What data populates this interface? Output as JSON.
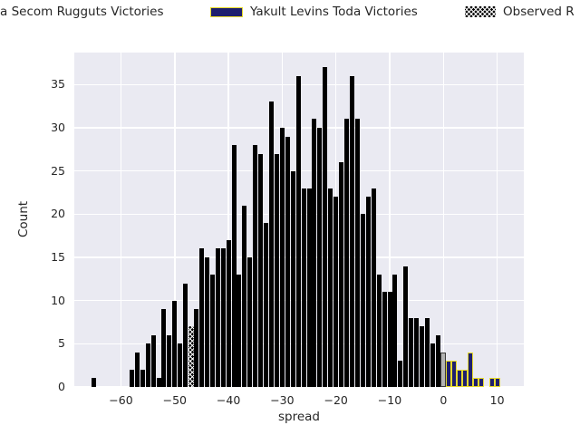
{
  "legend": {
    "items": [
      {
        "label": "a Secom Rugguts Victories",
        "swatch": "clipped-offscreen"
      },
      {
        "label": "Yakult Levins Toda Victories",
        "swatch": "navy-yellow-edge",
        "swatch_fill": "#1e1f6e",
        "swatch_edge": "#e6da2c"
      },
      {
        "label": "Observed R",
        "swatch": "black-white-x-hatch",
        "swatch_fill": "#000000",
        "swatch_hatch": "white-x"
      }
    ]
  },
  "axes": {
    "xlabel": "spread",
    "ylabel": "Count"
  },
  "colors": {
    "plot_background": "#eaeaf2",
    "gridline": "#ffffff",
    "black_series": "#000000",
    "navy_series": "#1e1f6e",
    "navy_edge": "#e6da2c",
    "grey_bar": "#b3b3b3",
    "text": "#262626"
  },
  "chart_data": {
    "type": "bar",
    "title": "",
    "xlabel": "spread",
    "ylabel": "Count",
    "xlim": [
      -68.7,
      15.1
    ],
    "ylim": [
      0,
      38.7
    ],
    "xticks": [
      -60,
      -50,
      -40,
      -30,
      -20,
      -10,
      0,
      10
    ],
    "yticks": [
      0,
      5,
      10,
      15,
      20,
      25,
      30,
      35
    ],
    "grid": true,
    "legend_position": "top",
    "bin_width": 1,
    "series": [
      {
        "name": "a Secom Rugguts Victories",
        "style": "black",
        "x": [
          -65,
          -58,
          -57,
          -56,
          -55,
          -54,
          -53,
          -52,
          -51,
          -50,
          -49,
          -48,
          -46,
          -45,
          -44,
          -43,
          -42,
          -41,
          -40,
          -39,
          -38,
          -37,
          -36,
          -35,
          -34,
          -33,
          -32,
          -31,
          -30,
          -29,
          -28,
          -27,
          -26,
          -25,
          -24,
          -23,
          -22,
          -21,
          -20,
          -19,
          -18,
          -17,
          -16,
          -15,
          -14,
          -13,
          -12,
          -11,
          -10,
          -9,
          -8,
          -7,
          -6,
          -5,
          -4,
          -3,
          -2,
          -1
        ],
        "counts": [
          1,
          2,
          4,
          2,
          5,
          6,
          1,
          9,
          6,
          10,
          5,
          12,
          9,
          16,
          15,
          13,
          16,
          16,
          17,
          28,
          13,
          21,
          15,
          28,
          27,
          19,
          33,
          27,
          30,
          29,
          25,
          36,
          23,
          23,
          31,
          30,
          37,
          23,
          22,
          26,
          31,
          36,
          31,
          20,
          22,
          23,
          13,
          11,
          11,
          13,
          3,
          14,
          8,
          8,
          7,
          8,
          5,
          6
        ]
      },
      {
        "name": "Yakult Levins Toda Victories",
        "style": "navy-yellow-edge",
        "x": [
          1,
          2,
          3,
          4,
          5,
          6,
          7,
          9,
          10
        ],
        "counts": [
          3,
          3,
          2,
          2,
          4,
          1,
          1,
          1,
          1
        ]
      },
      {
        "name": "unlabeled-grey-bar",
        "style": "grey",
        "x": [
          0
        ],
        "counts": [
          4
        ]
      },
      {
        "name": "Observed R",
        "style": "black-white-x-hatch",
        "x": [
          -47
        ],
        "counts": [
          7
        ]
      }
    ]
  }
}
